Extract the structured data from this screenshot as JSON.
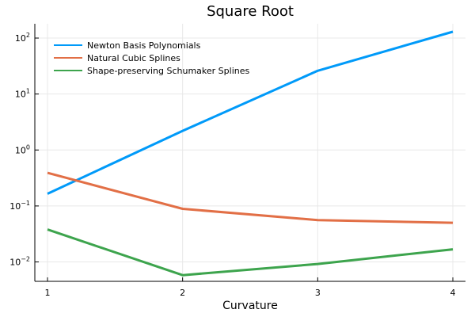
{
  "chart_data": {
    "type": "line",
    "title": "Square Root",
    "xlabel": "Curvature",
    "ylabel": "",
    "x": [
      1,
      2,
      3,
      4
    ],
    "xlim": [
      1,
      4
    ],
    "y_scale": "log10",
    "ylim": [
      0.0045,
      180
    ],
    "y_ticks": [
      0.01,
      0.1,
      1,
      10,
      100
    ],
    "grid": true,
    "legend_position": "top-left",
    "series": [
      {
        "name": "Newton Basis Polynomials",
        "color": "#009AF9",
        "values": [
          0.165,
          2.2,
          26,
          130
        ]
      },
      {
        "name": "Natural Cubic Splines",
        "color": "#E26F46",
        "values": [
          0.39,
          0.089,
          0.056,
          0.05
        ]
      },
      {
        "name": "Shape-preserving Schumaker Splines",
        "color": "#3DA44D",
        "values": [
          0.038,
          0.0058,
          0.0092,
          0.0168
        ]
      }
    ]
  }
}
